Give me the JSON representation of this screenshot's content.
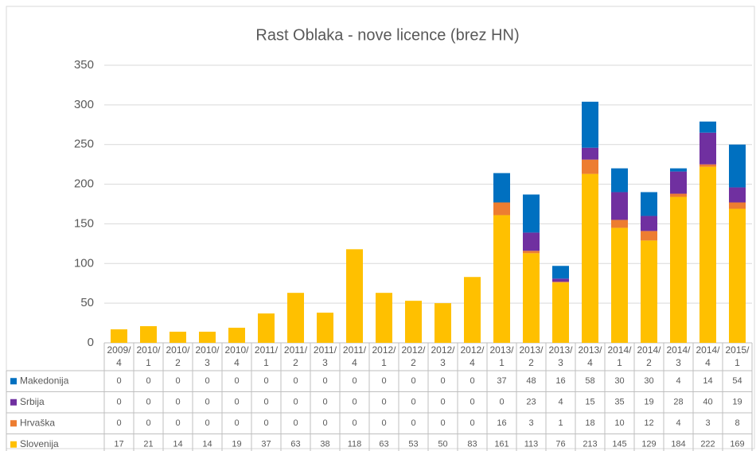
{
  "chart_data": {
    "type": "stacked_bar",
    "title": "Rast Oblaka - nove licence (brez HN)",
    "categories": [
      "2009/4",
      "2010/1",
      "2010/2",
      "2010/3",
      "2010/4",
      "2011/1",
      "2011/2",
      "2011/3",
      "2011/4",
      "2012/1",
      "2012/2",
      "2012/3",
      "2012/4",
      "2013/1",
      "2013/2",
      "2013/3",
      "2013/4",
      "2014/1",
      "2014/2",
      "2014/3",
      "2014/4",
      "2015/1"
    ],
    "series": [
      {
        "name": "Slovenija",
        "color": "#ffc000",
        "values": [
          17,
          21,
          14,
          14,
          19,
          37,
          63,
          38,
          118,
          63,
          53,
          50,
          83,
          161,
          113,
          76,
          213,
          145,
          129,
          184,
          222,
          169
        ]
      },
      {
        "name": "Hrvaška",
        "color": "#ed7d31",
        "values": [
          0,
          0,
          0,
          0,
          0,
          0,
          0,
          0,
          0,
          0,
          0,
          0,
          0,
          16,
          3,
          1,
          18,
          10,
          12,
          4,
          3,
          8
        ]
      },
      {
        "name": "Srbija",
        "color": "#7030a0",
        "values": [
          0,
          0,
          0,
          0,
          0,
          0,
          0,
          0,
          0,
          0,
          0,
          0,
          0,
          0,
          23,
          4,
          15,
          35,
          19,
          28,
          40,
          19
        ]
      },
      {
        "name": "Makedonija",
        "color": "#0070c0",
        "values": [
          0,
          0,
          0,
          0,
          0,
          0,
          0,
          0,
          0,
          0,
          0,
          0,
          0,
          37,
          48,
          16,
          58,
          30,
          30,
          4,
          14,
          54
        ]
      }
    ],
    "ylim": [
      0,
      350
    ],
    "yticks": [
      0,
      50,
      100,
      150,
      200,
      250,
      300,
      350
    ],
    "grid": true,
    "data_table": true
  }
}
